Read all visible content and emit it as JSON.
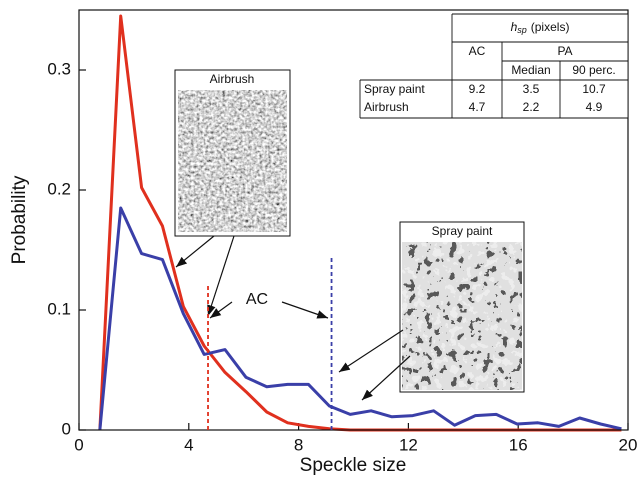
{
  "chart_data": {
    "type": "line",
    "xlabel": "Speckle size",
    "ylabel": "Probability",
    "x": [
      0.76,
      1.52,
      2.28,
      3.04,
      3.8,
      4.56,
      5.32,
      6.08,
      6.84,
      7.6,
      8.36,
      9.12,
      9.88,
      10.64,
      11.4,
      12.16,
      12.92,
      13.68,
      14.44,
      15.2,
      15.96,
      16.72,
      17.48,
      18.24,
      19.0,
      19.76
    ],
    "series": [
      {
        "color": "#e0301e",
        "values": [
          0,
          0.345,
          0.202,
          0.17,
          0.103,
          0.07,
          0.048,
          0.032,
          0.015,
          0.006,
          0.003,
          0.001,
          0,
          0,
          0,
          0,
          0,
          0,
          0,
          0,
          0,
          0,
          0,
          0,
          0,
          0
        ]
      },
      {
        "color": "#3a3fa8",
        "values": [
          0,
          0.185,
          0.147,
          0.142,
          0.097,
          0.063,
          0.067,
          0.044,
          0.036,
          0.038,
          0.038,
          0.02,
          0.013,
          0.016,
          0.011,
          0.012,
          0.016,
          0.004,
          0.012,
          0.013,
          0.005,
          0.006,
          0.003,
          0.01,
          0.005,
          0.001
        ]
      }
    ],
    "xlim": [
      0,
      20
    ],
    "xticks": [
      0,
      4,
      8,
      12,
      16,
      20
    ],
    "ylim": [
      0,
      0.35
    ],
    "yticks": [
      0,
      0.1,
      0.2,
      0.3
    ],
    "reference_lines": [
      {
        "x": 4.7,
        "ymax": 0.122,
        "color": "#e0301e"
      },
      {
        "x": 9.2,
        "ymax": 0.145,
        "color": "#3a3fa8"
      }
    ],
    "annotations": {
      "ac": "AC",
      "airbrush": "Airbrush",
      "spray_paint": "Spray paint"
    },
    "table": {
      "symbol": "h",
      "subscript": "sp",
      "unit": "(pixels)",
      "ac": "AC",
      "pa": "PA",
      "median": "Median",
      "perc": "90 perc.",
      "rows": [
        [
          "Spray paint",
          9.2,
          3.5,
          10.7
        ],
        [
          "Airbrush",
          4.7,
          2.2,
          4.9
        ]
      ]
    }
  }
}
